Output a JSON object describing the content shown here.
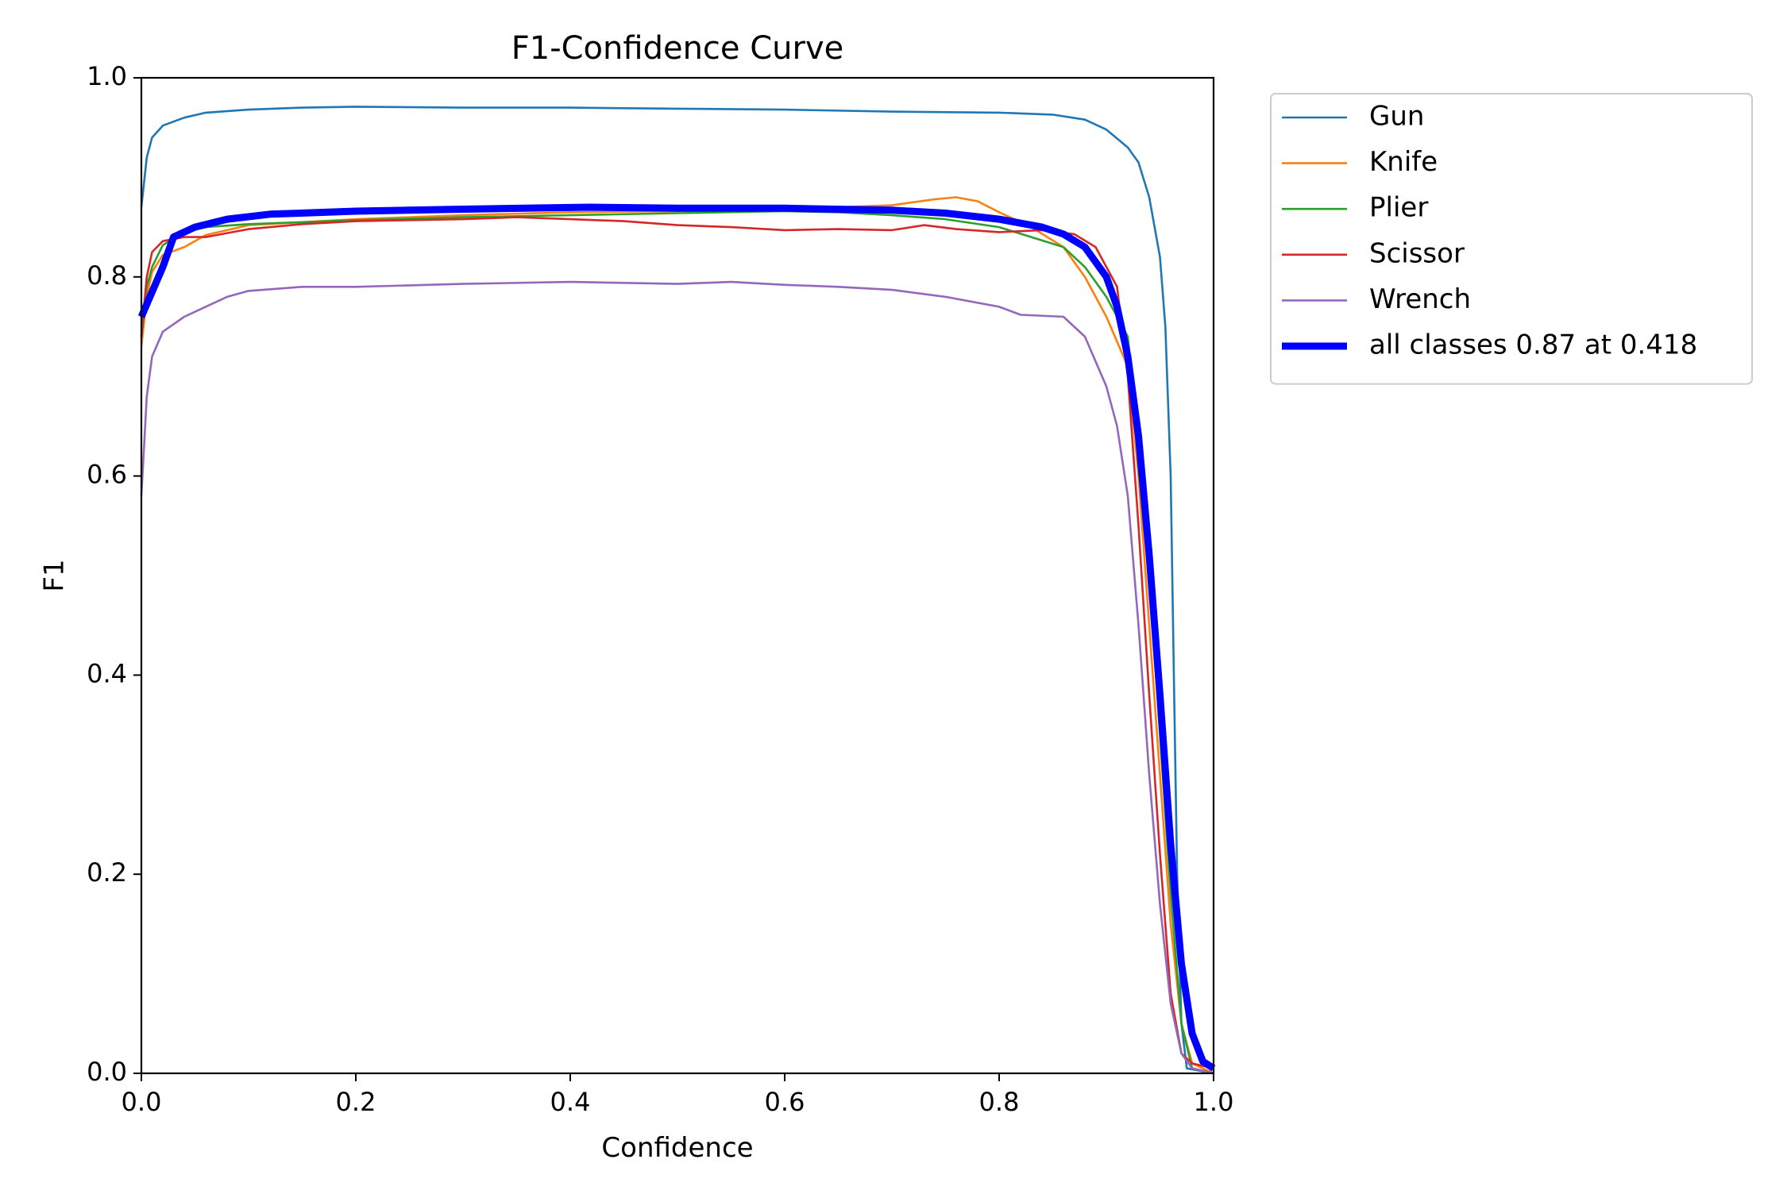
{
  "chart_data": {
    "type": "line",
    "title": "F1-Confidence Curve",
    "xlabel": "Confidence",
    "ylabel": "F1",
    "xlim": [
      0.0,
      1.0
    ],
    "ylim": [
      0.0,
      1.0
    ],
    "xticks": [
      "0.0",
      "0.2",
      "0.4",
      "0.6",
      "0.8",
      "1.0"
    ],
    "yticks": [
      "0.0",
      "0.2",
      "0.4",
      "0.6",
      "0.8",
      "1.0"
    ],
    "grid": false,
    "legend_position": "outside-upper-right",
    "series": [
      {
        "name": "Gun",
        "color": "#1f77b4",
        "linewidth": "thin",
        "points": [
          [
            0.0,
            0.87
          ],
          [
            0.005,
            0.92
          ],
          [
            0.01,
            0.94
          ],
          [
            0.02,
            0.952
          ],
          [
            0.04,
            0.96
          ],
          [
            0.06,
            0.965
          ],
          [
            0.1,
            0.968
          ],
          [
            0.15,
            0.97
          ],
          [
            0.2,
            0.971
          ],
          [
            0.3,
            0.97
          ],
          [
            0.4,
            0.97
          ],
          [
            0.5,
            0.969
          ],
          [
            0.6,
            0.968
          ],
          [
            0.7,
            0.966
          ],
          [
            0.8,
            0.965
          ],
          [
            0.85,
            0.963
          ],
          [
            0.88,
            0.958
          ],
          [
            0.9,
            0.948
          ],
          [
            0.92,
            0.93
          ],
          [
            0.93,
            0.915
          ],
          [
            0.94,
            0.88
          ],
          [
            0.95,
            0.82
          ],
          [
            0.955,
            0.75
          ],
          [
            0.96,
            0.6
          ],
          [
            0.963,
            0.4
          ],
          [
            0.966,
            0.2
          ],
          [
            0.97,
            0.05
          ],
          [
            0.975,
            0.005
          ],
          [
            1.0,
            0.0
          ]
        ]
      },
      {
        "name": "Knife",
        "color": "#ff7f0e",
        "linewidth": "thin",
        "points": [
          [
            0.0,
            0.73
          ],
          [
            0.005,
            0.78
          ],
          [
            0.01,
            0.805
          ],
          [
            0.02,
            0.822
          ],
          [
            0.04,
            0.83
          ],
          [
            0.06,
            0.842
          ],
          [
            0.1,
            0.852
          ],
          [
            0.2,
            0.858
          ],
          [
            0.3,
            0.862
          ],
          [
            0.4,
            0.865
          ],
          [
            0.5,
            0.866
          ],
          [
            0.6,
            0.868
          ],
          [
            0.65,
            0.87
          ],
          [
            0.7,
            0.872
          ],
          [
            0.74,
            0.878
          ],
          [
            0.76,
            0.88
          ],
          [
            0.78,
            0.876
          ],
          [
            0.8,
            0.865
          ],
          [
            0.83,
            0.85
          ],
          [
            0.86,
            0.83
          ],
          [
            0.88,
            0.8
          ],
          [
            0.9,
            0.76
          ],
          [
            0.92,
            0.71
          ],
          [
            0.93,
            0.6
          ],
          [
            0.94,
            0.45
          ],
          [
            0.95,
            0.3
          ],
          [
            0.96,
            0.15
          ],
          [
            0.97,
            0.05
          ],
          [
            0.98,
            0.01
          ],
          [
            1.0,
            0.0
          ]
        ]
      },
      {
        "name": "Plier",
        "color": "#2ca02c",
        "linewidth": "thin",
        "points": [
          [
            0.0,
            0.74
          ],
          [
            0.005,
            0.79
          ],
          [
            0.01,
            0.81
          ],
          [
            0.02,
            0.832
          ],
          [
            0.04,
            0.845
          ],
          [
            0.06,
            0.85
          ],
          [
            0.1,
            0.853
          ],
          [
            0.2,
            0.857
          ],
          [
            0.3,
            0.86
          ],
          [
            0.4,
            0.862
          ],
          [
            0.5,
            0.864
          ],
          [
            0.6,
            0.866
          ],
          [
            0.65,
            0.865
          ],
          [
            0.7,
            0.862
          ],
          [
            0.75,
            0.858
          ],
          [
            0.8,
            0.85
          ],
          [
            0.83,
            0.84
          ],
          [
            0.86,
            0.83
          ],
          [
            0.88,
            0.81
          ],
          [
            0.9,
            0.78
          ],
          [
            0.92,
            0.74
          ],
          [
            0.93,
            0.64
          ],
          [
            0.94,
            0.5
          ],
          [
            0.95,
            0.34
          ],
          [
            0.96,
            0.18
          ],
          [
            0.97,
            0.05
          ],
          [
            0.98,
            0.005
          ],
          [
            1.0,
            0.0
          ]
        ]
      },
      {
        "name": "Scissor",
        "color": "#d62728",
        "linewidth": "thin",
        "points": [
          [
            0.0,
            0.74
          ],
          [
            0.005,
            0.8
          ],
          [
            0.01,
            0.825
          ],
          [
            0.02,
            0.836
          ],
          [
            0.04,
            0.84
          ],
          [
            0.06,
            0.84
          ],
          [
            0.1,
            0.848
          ],
          [
            0.15,
            0.853
          ],
          [
            0.2,
            0.856
          ],
          [
            0.3,
            0.858
          ],
          [
            0.35,
            0.86
          ],
          [
            0.4,
            0.858
          ],
          [
            0.45,
            0.856
          ],
          [
            0.5,
            0.852
          ],
          [
            0.55,
            0.85
          ],
          [
            0.6,
            0.847
          ],
          [
            0.65,
            0.848
          ],
          [
            0.7,
            0.847
          ],
          [
            0.73,
            0.852
          ],
          [
            0.76,
            0.848
          ],
          [
            0.8,
            0.845
          ],
          [
            0.84,
            0.847
          ],
          [
            0.87,
            0.843
          ],
          [
            0.89,
            0.83
          ],
          [
            0.91,
            0.79
          ],
          [
            0.92,
            0.7
          ],
          [
            0.93,
            0.55
          ],
          [
            0.94,
            0.38
          ],
          [
            0.95,
            0.22
          ],
          [
            0.96,
            0.08
          ],
          [
            0.97,
            0.02
          ],
          [
            0.98,
            0.01
          ],
          [
            1.0,
            0.005
          ]
        ]
      },
      {
        "name": "Wrench",
        "color": "#9467bd",
        "linewidth": "thin",
        "points": [
          [
            0.0,
            0.58
          ],
          [
            0.005,
            0.68
          ],
          [
            0.01,
            0.72
          ],
          [
            0.02,
            0.745
          ],
          [
            0.04,
            0.76
          ],
          [
            0.06,
            0.77
          ],
          [
            0.08,
            0.78
          ],
          [
            0.1,
            0.786
          ],
          [
            0.15,
            0.79
          ],
          [
            0.2,
            0.79
          ],
          [
            0.3,
            0.793
          ],
          [
            0.4,
            0.795
          ],
          [
            0.5,
            0.793
          ],
          [
            0.55,
            0.795
          ],
          [
            0.6,
            0.792
          ],
          [
            0.65,
            0.79
          ],
          [
            0.7,
            0.787
          ],
          [
            0.75,
            0.78
          ],
          [
            0.8,
            0.77
          ],
          [
            0.82,
            0.762
          ],
          [
            0.86,
            0.76
          ],
          [
            0.88,
            0.74
          ],
          [
            0.9,
            0.69
          ],
          [
            0.91,
            0.65
          ],
          [
            0.92,
            0.58
          ],
          [
            0.93,
            0.45
          ],
          [
            0.94,
            0.3
          ],
          [
            0.95,
            0.17
          ],
          [
            0.96,
            0.07
          ],
          [
            0.97,
            0.02
          ],
          [
            0.98,
            0.005
          ],
          [
            1.0,
            0.0
          ]
        ]
      },
      {
        "name": "all classes 0.87 at 0.418",
        "color": "#0000ff",
        "linewidth": "thick",
        "points": [
          [
            0.0,
            0.76
          ],
          [
            0.01,
            0.785
          ],
          [
            0.02,
            0.81
          ],
          [
            0.03,
            0.84
          ],
          [
            0.05,
            0.85
          ],
          [
            0.08,
            0.858
          ],
          [
            0.12,
            0.863
          ],
          [
            0.2,
            0.866
          ],
          [
            0.3,
            0.868
          ],
          [
            0.418,
            0.87
          ],
          [
            0.5,
            0.869
          ],
          [
            0.6,
            0.869
          ],
          [
            0.7,
            0.867
          ],
          [
            0.75,
            0.864
          ],
          [
            0.8,
            0.858
          ],
          [
            0.84,
            0.85
          ],
          [
            0.86,
            0.843
          ],
          [
            0.88,
            0.83
          ],
          [
            0.9,
            0.8
          ],
          [
            0.91,
            0.77
          ],
          [
            0.92,
            0.72
          ],
          [
            0.93,
            0.64
          ],
          [
            0.94,
            0.52
          ],
          [
            0.95,
            0.38
          ],
          [
            0.96,
            0.23
          ],
          [
            0.97,
            0.11
          ],
          [
            0.98,
            0.04
          ],
          [
            0.99,
            0.012
          ],
          [
            1.0,
            0.005
          ]
        ]
      }
    ]
  }
}
